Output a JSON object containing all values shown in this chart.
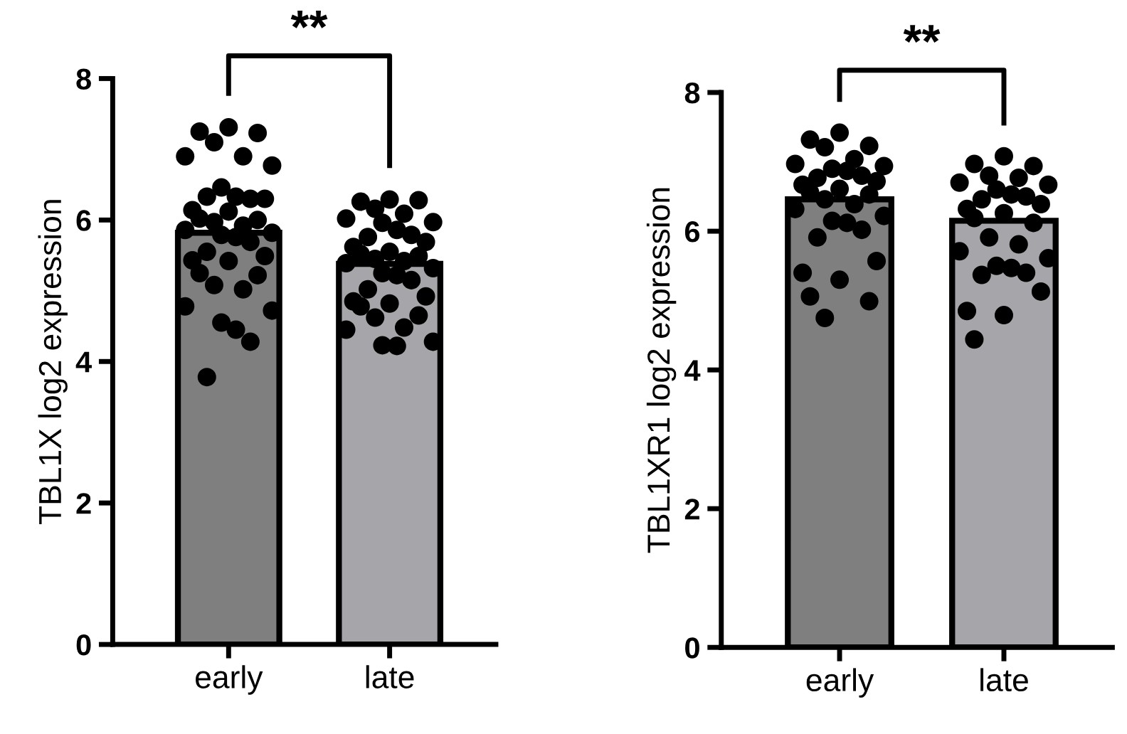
{
  "chart_data": [
    {
      "type": "bar",
      "categories": [
        "early",
        "late"
      ],
      "values": [
        5.82,
        5.38
      ],
      "colors": [
        "#7f7f7f",
        "#a5a5aa"
      ],
      "ylabel": "TBL1X log2 expression",
      "ylim": [
        0,
        8
      ],
      "yticks": [
        0,
        2,
        4,
        6,
        8
      ],
      "annotations": [
        "**"
      ],
      "grid": false,
      "series": [
        {
          "type": "scatter",
          "color": "#000000",
          "x": [
            "early",
            "early",
            "early",
            "early",
            "early",
            "early",
            "early",
            "early",
            "early",
            "early",
            "early",
            "early",
            "early",
            "early",
            "early",
            "early",
            "early",
            "early",
            "early",
            "early",
            "early",
            "early",
            "early",
            "early",
            "early",
            "early",
            "early",
            "early",
            "early",
            "early",
            "early",
            "early",
            "early",
            "early",
            "early",
            "early",
            "early"
          ],
          "values": [
            7.31,
            7.25,
            7.23,
            7.1,
            6.9,
            6.9,
            6.77,
            6.46,
            6.33,
            6.3,
            6.33,
            6.3,
            6.14,
            6.12,
            6.02,
            6.0,
            5.97,
            5.92,
            5.86,
            5.82,
            5.79,
            5.76,
            5.69,
            5.55,
            5.49,
            5.43,
            5.42,
            5.25,
            5.22,
            5.08,
            5.02,
            4.78,
            4.72,
            4.55,
            4.45,
            4.28,
            3.78
          ]
        },
        {
          "type": "scatter",
          "color": "#000000",
          "x": [
            "late",
            "late",
            "late",
            "late",
            "late",
            "late",
            "late",
            "late",
            "late",
            "late",
            "late",
            "late",
            "late",
            "late",
            "late",
            "late",
            "late",
            "late",
            "late",
            "late",
            "late",
            "late",
            "late",
            "late",
            "late",
            "late",
            "late",
            "late",
            "late",
            "late",
            "late",
            "late",
            "late",
            "late",
            "late"
          ],
          "values": [
            6.29,
            6.26,
            6.28,
            6.16,
            6.09,
            6.02,
            5.97,
            5.96,
            5.86,
            5.79,
            5.76,
            5.69,
            5.62,
            5.55,
            5.52,
            5.49,
            5.45,
            5.42,
            5.39,
            5.32,
            5.25,
            5.22,
            5.15,
            5.02,
            4.92,
            4.85,
            4.82,
            4.78,
            4.65,
            4.62,
            4.48,
            4.45,
            4.28,
            4.23,
            4.22
          ]
        }
      ]
    },
    {
      "type": "bar",
      "categories": [
        "early",
        "late"
      ],
      "values": [
        6.46,
        6.15
      ],
      "colors": [
        "#7f7f7f",
        "#a5a5aa"
      ],
      "ylabel": "TBL1XR1 log2 expression",
      "ylim": [
        0,
        8
      ],
      "yticks": [
        0,
        2,
        4,
        6,
        8
      ],
      "annotations": [
        "**"
      ],
      "grid": false,
      "series": [
        {
          "type": "scatter",
          "color": "#000000",
          "x": [
            "early",
            "early",
            "early",
            "early",
            "early",
            "early",
            "early",
            "early",
            "early",
            "early",
            "early",
            "early",
            "early",
            "early",
            "early",
            "early",
            "early",
            "early",
            "early",
            "early",
            "early",
            "early",
            "early",
            "early",
            "early",
            "early",
            "early",
            "early",
            "early",
            "early"
          ],
          "values": [
            7.42,
            7.32,
            7.23,
            7.21,
            7.04,
            6.97,
            6.94,
            6.9,
            6.87,
            6.8,
            6.77,
            6.72,
            6.67,
            6.61,
            6.56,
            6.53,
            6.46,
            6.39,
            6.32,
            6.22,
            6.15,
            6.12,
            6.02,
            5.91,
            5.57,
            5.4,
            5.3,
            5.06,
            4.99,
            4.75
          ]
        },
        {
          "type": "scatter",
          "color": "#000000",
          "x": [
            "late",
            "late",
            "late",
            "late",
            "late",
            "late",
            "late",
            "late",
            "late",
            "late",
            "late",
            "late",
            "late",
            "late",
            "late",
            "late",
            "late",
            "late",
            "late",
            "late",
            "late",
            "late",
            "late",
            "late",
            "late",
            "late",
            "late",
            "late"
          ],
          "values": [
            7.08,
            6.97,
            6.94,
            6.8,
            6.77,
            6.7,
            6.67,
            6.6,
            6.53,
            6.5,
            6.46,
            6.39,
            6.32,
            6.26,
            6.19,
            6.12,
            5.91,
            5.81,
            5.71,
            5.61,
            5.5,
            5.47,
            5.4,
            5.37,
            5.13,
            4.85,
            4.79,
            4.44
          ]
        }
      ]
    }
  ]
}
